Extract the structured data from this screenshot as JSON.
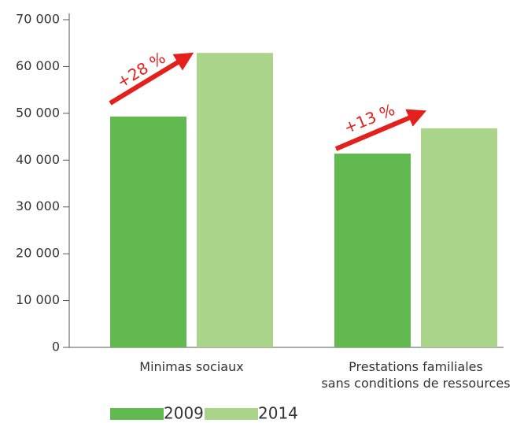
{
  "chart_data": {
    "type": "bar",
    "categories": [
      "Minimas sociaux",
      "Prestations familiales\nsans conditions de ressources"
    ],
    "series": [
      {
        "name": "2009",
        "color": "#62b94f",
        "values": [
          49300,
          41400
        ]
      },
      {
        "name": "2014",
        "color": "#a9d48a",
        "values": [
          62900,
          46800
        ]
      }
    ],
    "ylim": [
      0,
      70000
    ],
    "yticks": [
      0,
      {
        "value": 10000,
        "label": "10 000"
      },
      {
        "value": 20000,
        "label": "20 000"
      },
      {
        "value": 30000,
        "label": "30 000"
      },
      {
        "value": 40000,
        "label": "40 000"
      },
      {
        "value": 50000,
        "label": "50 000"
      },
      {
        "value": 60000,
        "label": "60 000"
      },
      {
        "value": 70000,
        "label": "70 000"
      }
    ],
    "annotations": [
      "+28 %",
      "+13 %"
    ],
    "legend": "bottom-left"
  }
}
